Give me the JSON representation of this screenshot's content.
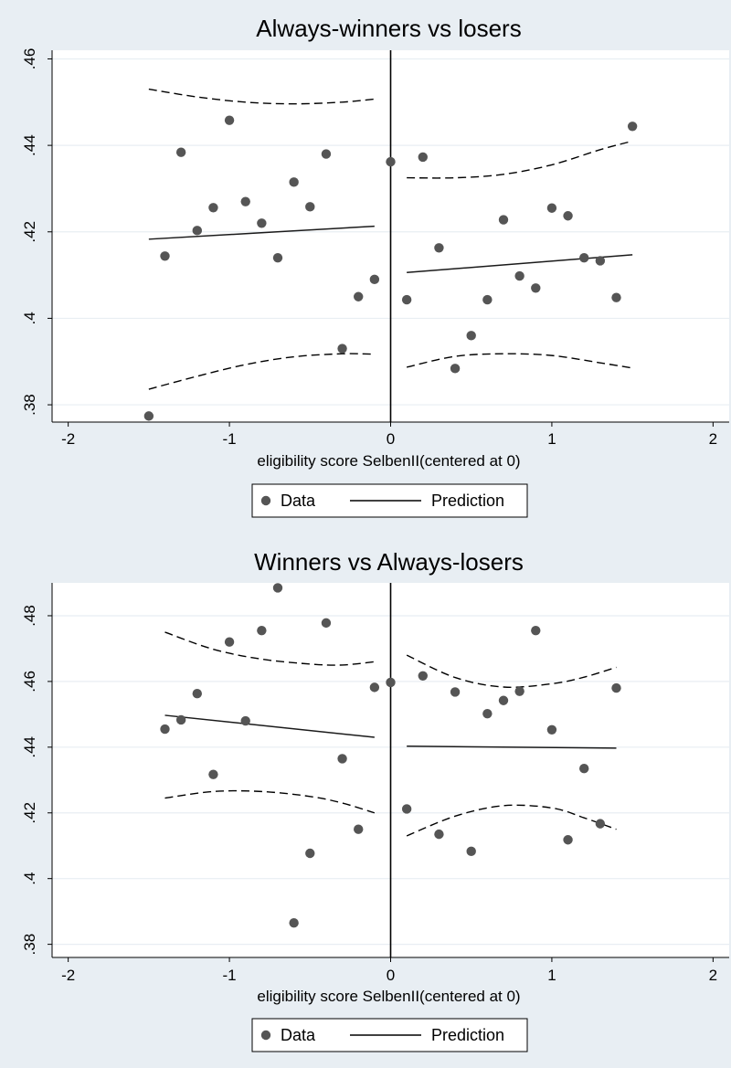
{
  "chart_data": [
    {
      "type": "scatter",
      "title": "Always-winners vs losers",
      "xlabel": "eligibility score SelbenII(centered at 0)",
      "ylabel": "",
      "xlim": [
        -2.1,
        2.1
      ],
      "ylim": [
        0.376,
        0.462
      ],
      "xticks": [
        -2,
        -1,
        0,
        1,
        2
      ],
      "xtick_labels": [
        "-2",
        "-1",
        "0",
        "1",
        "2"
      ],
      "yticks": [
        0.38,
        0.4,
        0.42,
        0.44,
        0.46
      ],
      "ytick_labels": [
        ".38",
        ".4",
        ".42",
        ".44",
        ".46"
      ],
      "grid": true,
      "cutoff_x": 0,
      "legend": {
        "placement": "bottom-center",
        "entries": [
          "Data",
          "Prediction"
        ]
      },
      "series": [
        {
          "name": "Data",
          "kind": "points",
          "x": [
            -1.5,
            -1.4,
            -1.3,
            -1.2,
            -1.1,
            -1.0,
            -0.9,
            -0.8,
            -0.7,
            -0.6,
            -0.5,
            -0.4,
            -0.3,
            -0.2,
            -0.1,
            0.0,
            0.1,
            0.2,
            0.3,
            0.4,
            0.5,
            0.6,
            0.7,
            0.8,
            0.9,
            1.0,
            1.1,
            1.2,
            1.3,
            1.4,
            1.5
          ],
          "y": [
            0.3774,
            0.4144,
            0.4384,
            0.4203,
            0.4256,
            0.4458,
            0.427,
            0.422,
            0.414,
            0.4315,
            0.4258,
            0.438,
            0.393,
            0.405,
            0.409,
            0.4362,
            0.4043,
            0.4373,
            0.4163,
            0.3884,
            0.396,
            0.4043,
            0.4228,
            0.4098,
            0.407,
            0.4255,
            0.4237,
            0.414,
            0.4133,
            0.4048,
            0.4444
          ]
        },
        {
          "name": "Prediction",
          "kind": "line",
          "segments": [
            {
              "x": [
                -1.5,
                -0.1
              ],
              "y": [
                0.4183,
                0.4213
              ]
            },
            {
              "x": [
                0.1,
                1.5
              ],
              "y": [
                0.4106,
                0.4147
              ]
            }
          ]
        }
      ],
      "confidence_bands": [
        {
          "x": [
            -1.5,
            -1.2,
            -0.9,
            -0.6,
            -0.3,
            -0.1
          ],
          "upper": [
            0.453,
            0.4512,
            0.45,
            0.4496,
            0.45,
            0.4507
          ],
          "lower": [
            0.3836,
            0.3866,
            0.3893,
            0.3911,
            0.3918,
            0.3917
          ]
        },
        {
          "x": [
            0.1,
            0.4,
            0.7,
            1.0,
            1.3,
            1.5
          ],
          "upper": [
            0.4325,
            0.4325,
            0.4333,
            0.4355,
            0.439,
            0.441
          ],
          "lower": [
            0.3887,
            0.3912,
            0.3918,
            0.3914,
            0.3897,
            0.3885
          ]
        }
      ]
    },
    {
      "type": "scatter",
      "title": "Winners vs Always-losers",
      "xlabel": "eligibility score SelbenII(centered at 0)",
      "ylabel": "",
      "xlim": [
        -2.1,
        2.1
      ],
      "ylim": [
        0.376,
        0.49
      ],
      "xticks": [
        -2,
        -1,
        0,
        1,
        2
      ],
      "xtick_labels": [
        "-2",
        "-1",
        "0",
        "1",
        "2"
      ],
      "yticks": [
        0.38,
        0.4,
        0.42,
        0.44,
        0.46,
        0.48
      ],
      "ytick_labels": [
        ".38",
        ".4",
        ".42",
        ".44",
        ".46",
        ".48"
      ],
      "grid": true,
      "cutoff_x": 0,
      "legend": {
        "placement": "bottom-center",
        "entries": [
          "Data",
          "Prediction"
        ]
      },
      "series": [
        {
          "name": "Data",
          "kind": "points",
          "x": [
            -1.4,
            -1.3,
            -1.2,
            -1.1,
            -1.0,
            -0.9,
            -0.8,
            -0.7,
            -0.6,
            -0.5,
            -0.4,
            -0.3,
            -0.2,
            -0.1,
            0.0,
            0.1,
            0.2,
            0.3,
            0.4,
            0.5,
            0.6,
            0.7,
            0.8,
            0.9,
            1.0,
            1.1,
            1.2,
            1.3,
            1.4
          ],
          "y": [
            0.4455,
            0.4483,
            0.4563,
            0.4317,
            0.472,
            0.448,
            0.4755,
            0.4885,
            0.3865,
            0.4077,
            0.4778,
            0.4365,
            0.415,
            0.4582,
            0.4597,
            0.4212,
            0.4617,
            0.4135,
            0.4568,
            0.4083,
            0.4502,
            0.4542,
            0.457,
            0.4755,
            0.4453,
            0.4118,
            0.4335,
            0.4167,
            0.458
          ]
        },
        {
          "name": "Prediction",
          "kind": "line",
          "segments": [
            {
              "x": [
                -1.4,
                -0.1
              ],
              "y": [
                0.4497,
                0.443
              ]
            },
            {
              "x": [
                0.1,
                1.4
              ],
              "y": [
                0.4403,
                0.4397
              ]
            }
          ]
        }
      ],
      "confidence_bands": [
        {
          "x": [
            -1.4,
            -1.1,
            -0.8,
            -0.5,
            -0.3,
            -0.1
          ],
          "upper": [
            0.475,
            0.4698,
            0.4668,
            0.4653,
            0.465,
            0.466
          ],
          "lower": [
            0.4245,
            0.4265,
            0.4265,
            0.425,
            0.423,
            0.42
          ]
        },
        {
          "x": [
            0.1,
            0.4,
            0.7,
            1.0,
            1.2,
            1.4
          ],
          "upper": [
            0.468,
            0.4612,
            0.4583,
            0.4593,
            0.4613,
            0.4643
          ],
          "lower": [
            0.413,
            0.419,
            0.4222,
            0.4215,
            0.4185,
            0.415
          ]
        }
      ]
    }
  ]
}
